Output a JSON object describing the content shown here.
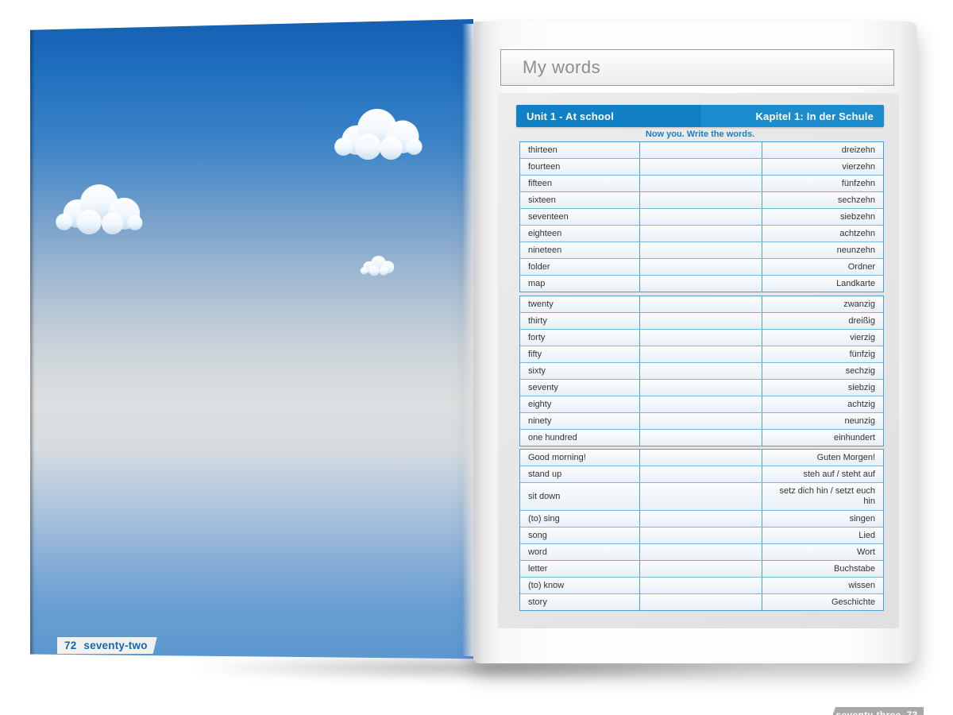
{
  "left_page": {
    "page_number": "72",
    "page_number_word": "seventy-two"
  },
  "right_page": {
    "title": "My words",
    "unit_label": "Unit 1 - At school",
    "chapter_label": "Kapitel 1: In der Schule",
    "instruction": "Now you. Write the words.",
    "vocab_tables": [
      {
        "rows": [
          {
            "en": "thirteen",
            "de": "dreizehn"
          },
          {
            "en": "fourteen",
            "de": "vierzehn"
          },
          {
            "en": "fifteen",
            "de": "fünfzehn"
          },
          {
            "en": "sixteen",
            "de": "sechzehn"
          },
          {
            "en": "seventeen",
            "de": "siebzehn"
          },
          {
            "en": "eighteen",
            "de": "achtzehn"
          },
          {
            "en": "nineteen",
            "de": "neunzehn"
          },
          {
            "en": "folder",
            "de": "Ordner"
          },
          {
            "en": "map",
            "de": "Landkarte"
          }
        ]
      },
      {
        "rows": [
          {
            "en": "twenty",
            "de": "zwanzig"
          },
          {
            "en": "thirty",
            "de": "dreißig"
          },
          {
            "en": "forty",
            "de": "vierzig"
          },
          {
            "en": "fifty",
            "de": "fünfzig"
          },
          {
            "en": "sixty",
            "de": "sechzig"
          },
          {
            "en": "seventy",
            "de": "siebzig"
          },
          {
            "en": "eighty",
            "de": "achtzig"
          },
          {
            "en": "ninety",
            "de": "neunzig"
          },
          {
            "en": "one hundred",
            "de": "einhundert"
          }
        ]
      },
      {
        "rows": [
          {
            "en": "Good morning!",
            "de": "Guten Morgen!"
          },
          {
            "en": "stand up",
            "de": "steh auf / steht auf"
          },
          {
            "en": "sit down",
            "de": "setz dich hin / setzt euch hin",
            "tall": true
          },
          {
            "en": "(to) sing",
            "de": "singen"
          },
          {
            "en": "song",
            "de": "Lied"
          },
          {
            "en": "word",
            "de": "Wort"
          },
          {
            "en": "letter",
            "de": "Buchstabe"
          },
          {
            "en": "(to) know",
            "de": "wissen"
          },
          {
            "en": "story",
            "de": "Geschichte"
          }
        ]
      }
    ],
    "page_number_word": "seventy-three",
    "page_number": "73"
  },
  "colors": {
    "header_blue_left": "#1180c5",
    "header_blue_right": "#1b8ccd",
    "instruction_blue": "#1a7fc6",
    "table_border_blue": "#4d9fd4",
    "footer_left_text_blue": "#1766ae",
    "footer_right_bg_gray": "#a8a8a8",
    "sky_top_blue": "#1460b2",
    "sky_bottom_blue": "#5b97cf"
  }
}
